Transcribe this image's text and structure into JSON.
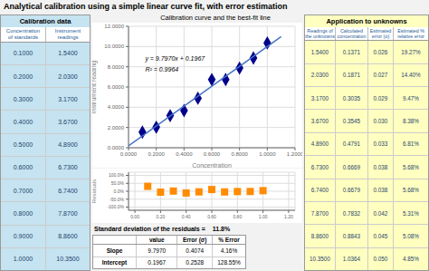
{
  "title": "Analytical calibration using a simple linear curve fit, with error estimation",
  "chart_data": [
    {
      "type": "table",
      "title": "Calibration data",
      "color": "#C5E3F0",
      "columns": [
        "Concentration\nof standards",
        "Instrument\nreadings"
      ],
      "rows": [
        [
          "0.1000",
          "1.5400"
        ],
        [
          "0.2000",
          "2.0300"
        ],
        [
          "0.3000",
          "3.1700"
        ],
        [
          "0.4000",
          "3.6700"
        ],
        [
          "0.5000",
          "4.8900"
        ],
        [
          "0.6000",
          "6.7300"
        ],
        [
          "0.7000",
          "6.7400"
        ],
        [
          "0.8000",
          "7.8700"
        ],
        [
          "0.9000",
          "8.8600"
        ],
        [
          "1.0000",
          "10.3500"
        ]
      ]
    },
    {
      "type": "scatter",
      "title": "Calibration curve and the best-fit line",
      "xlabel": "Concentration",
      "ylabel": "Instrument reading",
      "x": [
        0.1,
        0.2,
        0.3,
        0.4,
        0.5,
        0.6,
        0.7,
        0.8,
        0.9,
        1.0
      ],
      "series": [
        {
          "type": "scatter",
          "marker": "diamond",
          "color": "#00008B",
          "values": [
            1.54,
            2.03,
            3.17,
            3.67,
            4.89,
            6.73,
            6.74,
            7.87,
            8.86,
            10.35
          ]
        },
        {
          "type": "line",
          "color": "#4472C4",
          "x": [
            0.0,
            1.1
          ],
          "values": [
            0.1967,
            10.9734
          ]
        }
      ],
      "xlim": [
        0.0,
        1.2
      ],
      "ylim": [
        0.0,
        12.0
      ],
      "xticks": [
        {
          "value": 0.0,
          "label": "0.0000"
        },
        {
          "value": 0.2,
          "label": "0.2000"
        },
        {
          "value": 0.4,
          "label": "0.4000"
        },
        {
          "value": 0.6,
          "label": "0.6000"
        },
        {
          "value": 0.8,
          "label": "0.8000"
        },
        {
          "value": 1.0,
          "label": "1.0000"
        },
        {
          "value": 1.2,
          "label": "1.2000"
        }
      ],
      "yticks": [
        {
          "value": 0.0,
          "label": "0.0000"
        },
        {
          "value": 2.0,
          "label": "2.0000"
        },
        {
          "value": 4.0,
          "label": "4.0000"
        },
        {
          "value": 6.0,
          "label": "6.0000"
        },
        {
          "value": 8.0,
          "label": "8.0000"
        },
        {
          "value": 10.0,
          "label": "10.0000"
        },
        {
          "value": 12.0,
          "label": "12.0000"
        }
      ],
      "grid": true,
      "annotations": [
        "y = 9.7970x + 0.1967",
        "R² = 0.9964"
      ]
    },
    {
      "type": "scatter",
      "ylabel": "Residuals",
      "x": [
        0.1,
        0.2,
        0.3,
        0.4,
        0.5,
        0.6,
        0.7,
        0.8,
        0.9,
        1.0
      ],
      "series": [
        {
          "type": "scatter",
          "marker": "square",
          "color": "#FF8C00",
          "values": [
            30.908,
            -5.849,
            1.091,
            -10.825,
            -4.027,
            10.784,
            -4.46,
            -2.045,
            -1.708,
            3.565
          ]
        }
      ],
      "xlim": [
        -0.05,
        1.25
      ],
      "ylim": [
        -120,
        120
      ],
      "xticks": [
        {
          "value": 0.0,
          "label": "0.00"
        },
        {
          "value": 0.2,
          "label": "0.20"
        },
        {
          "value": 0.4,
          "label": "0.40"
        },
        {
          "value": 0.6,
          "label": "0.60"
        },
        {
          "value": 0.8,
          "label": "0.80"
        },
        {
          "value": 1.0,
          "label": "1.00"
        },
        {
          "value": 1.2,
          "label": "1.20"
        }
      ],
      "yticks": [
        {
          "value": -100,
          "label": "-100.0%"
        },
        {
          "value": -50,
          "label": "-50.0%"
        },
        {
          "value": 0,
          "label": "0.0%"
        },
        {
          "value": 50,
          "label": "50.0%"
        },
        {
          "value": 100,
          "label": "100.0%"
        }
      ],
      "grid": true,
      "annotations": [
        "Standard deviation of the residuals =",
        "11.8%"
      ]
    },
    {
      "type": "table",
      "columns": [
        null,
        "value",
        "Error (σ)",
        "% Error"
      ],
      "rows": [
        [
          "Slope",
          "9.7970",
          "0.4074",
          "4.16%"
        ],
        [
          "Intercept",
          "0.1967",
          "0.2528",
          "128.55%"
        ]
      ]
    },
    {
      "type": "table",
      "title": "Application to unknowns",
      "color": "#FFFFC0",
      "columns": [
        "Readings of\nthe unknowns",
        "Calculated\nconcentration",
        "Estimated\nerror (σ)",
        "Estimated %\nrelative error"
      ],
      "rows": [
        [
          "1.5400",
          "0.1371",
          "0.026",
          "19.27%"
        ],
        [
          "2.0300",
          "0.1871",
          "0.027",
          "14.40%"
        ],
        [
          "3.1700",
          "0.3035",
          "0.029",
          "9.47%"
        ],
        [
          "3.6700",
          "0.3545",
          "0.030",
          "8.38%"
        ],
        [
          "4.8900",
          "0.4791",
          "0.033",
          "6.81%"
        ],
        [
          "6.7300",
          "0.6669",
          "0.038",
          "5.68%"
        ],
        [
          "6.7400",
          "0.6679",
          "0.038",
          "5.68%"
        ],
        [
          "7.8700",
          "0.7832",
          "0.042",
          "5.31%"
        ],
        [
          "8.8600",
          "0.8843",
          "0.045",
          "5.08%"
        ],
        [
          "10.3500",
          "1.0364",
          "0.050",
          "4.85%"
        ]
      ]
    }
  ]
}
